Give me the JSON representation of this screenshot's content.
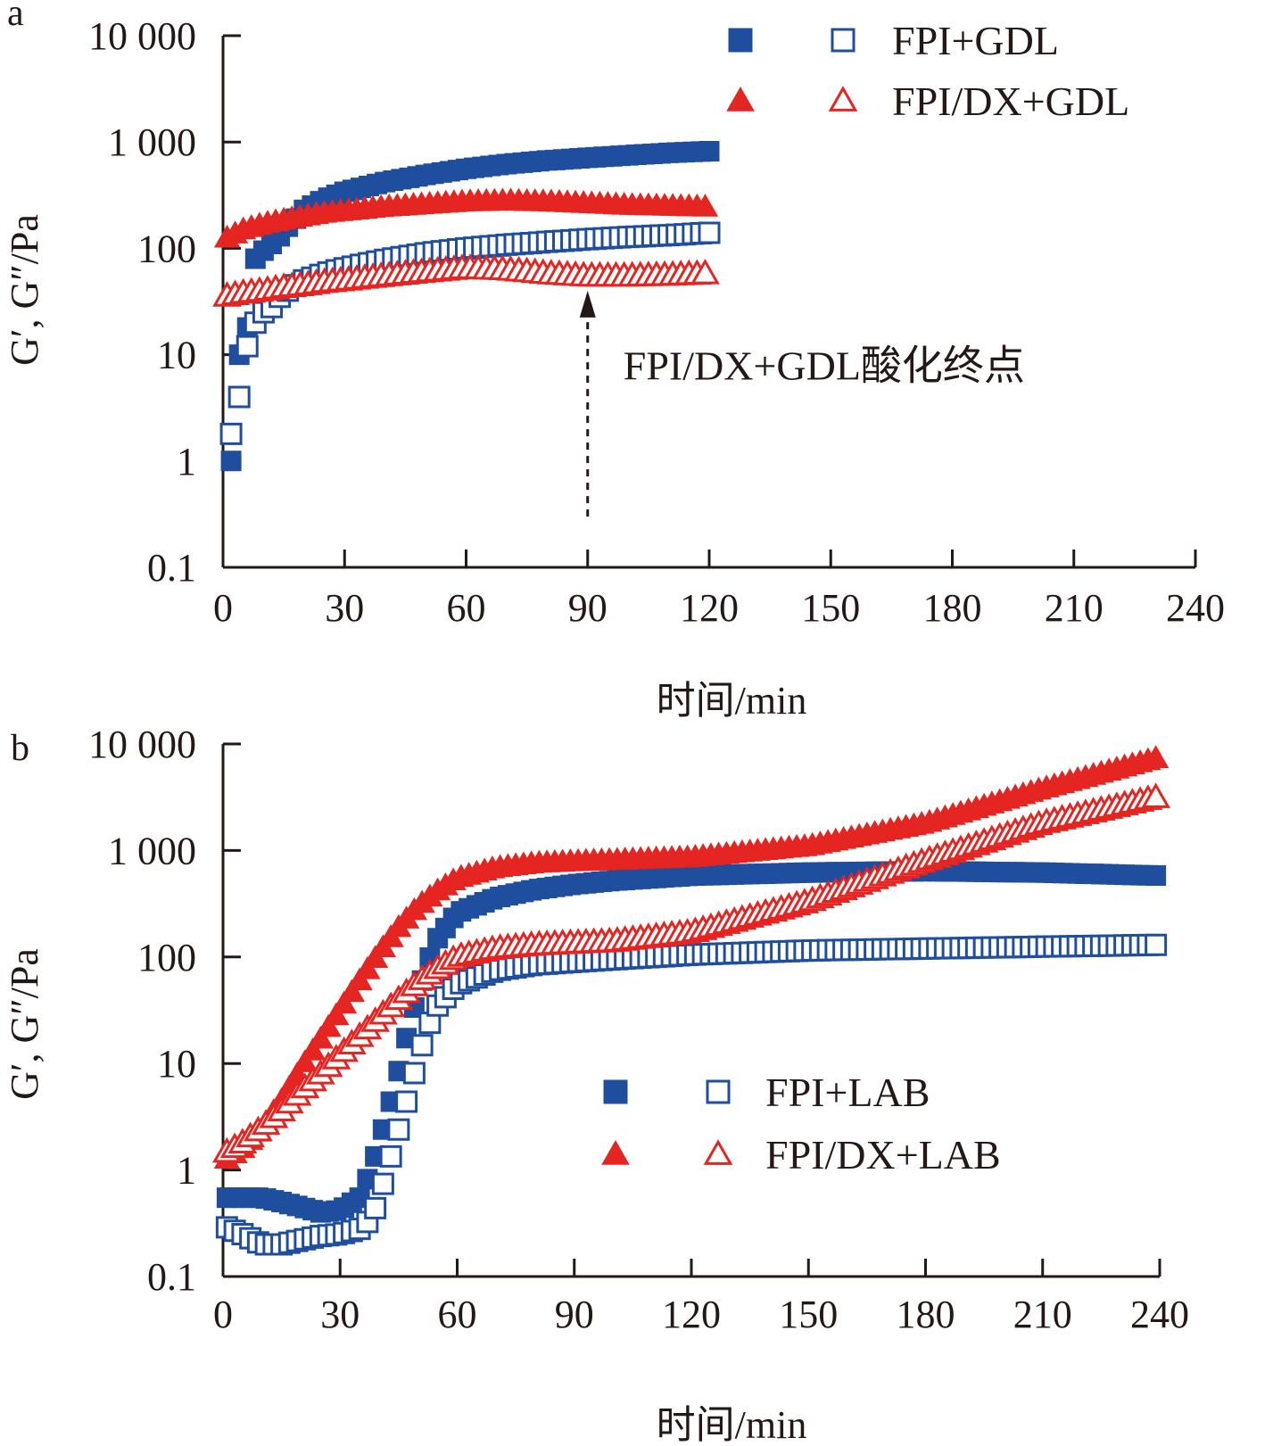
{
  "colors": {
    "blue": "#1f4e9e",
    "red": "#e52521",
    "ink": "#231815"
  },
  "chart_data": [
    {
      "panel": "a",
      "type": "scatter",
      "xlabel": "时间/min",
      "ylabel": "G′, G″/Pa",
      "xlim": [
        0,
        240
      ],
      "ylim": [
        0.1,
        10000
      ],
      "y_scale": "log",
      "xticks": [
        "0",
        "30",
        "60",
        "90",
        "120",
        "150",
        "180",
        "210",
        "240"
      ],
      "yticks": [
        "0.1",
        "1",
        "10",
        "100",
        "1 000",
        "10 000"
      ],
      "legend": [
        {
          "filled": "square-blue",
          "open": "square-blue",
          "label": "FPI+GDL"
        },
        {
          "filled": "triangle-red",
          "open": "triangle-red",
          "label": "FPI/DX+GDL"
        }
      ],
      "annotation": {
        "text": "FPI/DX+GDL酸化终点",
        "x": 90,
        "arrow_from_y": 0.3,
        "arrow_to_y": 40
      },
      "series": [
        {
          "sample": "FPI+GDL",
          "modulus": "G′",
          "marker": "square",
          "fill": "filled",
          "color": "blue",
          "x": [
            2,
            4,
            6,
            8,
            10,
            12,
            14,
            16,
            18,
            20,
            25,
            30,
            40,
            50,
            60,
            70,
            80,
            90,
            100,
            110,
            120
          ],
          "y": [
            1,
            10,
            18,
            80,
            95,
            110,
            130,
            160,
            190,
            230,
            290,
            340,
            420,
            490,
            560,
            620,
            670,
            710,
            750,
            790,
            820
          ]
        },
        {
          "sample": "FPI+GDL",
          "modulus": "G″",
          "marker": "square",
          "fill": "open",
          "color": "blue",
          "x": [
            2,
            4,
            6,
            8,
            10,
            12,
            14,
            16,
            18,
            20,
            25,
            30,
            40,
            50,
            60,
            70,
            80,
            90,
            100,
            110,
            120
          ],
          "y": [
            1.8,
            4,
            12,
            20,
            25,
            28,
            35,
            40,
            45,
            50,
            58,
            65,
            78,
            90,
            100,
            108,
            115,
            122,
            128,
            133,
            140
          ]
        },
        {
          "sample": "FPI/DX+GDL",
          "modulus": "G′",
          "marker": "triangle",
          "fill": "filled",
          "color": "red",
          "x": [
            0,
            5,
            10,
            15,
            20,
            25,
            30,
            40,
            50,
            60,
            70,
            80,
            90,
            100,
            110,
            120
          ],
          "y": [
            120,
            150,
            170,
            185,
            200,
            215,
            225,
            245,
            260,
            275,
            280,
            275,
            265,
            255,
            250,
            245
          ]
        },
        {
          "sample": "FPI/DX+GDL",
          "modulus": "G″",
          "marker": "triangle",
          "fill": "open",
          "color": "red",
          "x": [
            0,
            5,
            10,
            15,
            20,
            25,
            30,
            40,
            50,
            60,
            70,
            80,
            90,
            100,
            110,
            120
          ],
          "y": [
            35,
            38,
            40,
            43,
            45,
            48,
            50,
            55,
            60,
            65,
            63,
            58,
            55,
            55,
            56,
            58
          ]
        }
      ]
    },
    {
      "panel": "b",
      "type": "scatter",
      "xlabel": "时间/min",
      "ylabel": "G′, G″/Pa",
      "xlim": [
        0,
        240
      ],
      "ylim": [
        0.1,
        10000
      ],
      "y_scale": "log",
      "xticks": [
        "0",
        "30",
        "60",
        "90",
        "120",
        "150",
        "180",
        "210",
        "240"
      ],
      "yticks": [
        "0.1",
        "1",
        "10",
        "100",
        "1 000",
        "10 000"
      ],
      "legend": [
        {
          "filled": "square-blue",
          "open": "square-blue",
          "label": "FPI+LAB"
        },
        {
          "filled": "triangle-red",
          "open": "triangle-red",
          "label": "FPI/DX+LAB"
        }
      ],
      "series": [
        {
          "sample": "FPI+LAB",
          "modulus": "G′",
          "marker": "square",
          "fill": "filled",
          "color": "blue",
          "x": [
            0,
            5,
            10,
            15,
            20,
            25,
            30,
            35,
            38,
            40,
            42,
            44,
            46,
            48,
            50,
            52,
            55,
            60,
            70,
            80,
            90,
            100,
            120,
            150,
            180,
            210,
            240
          ],
          "y": [
            0.55,
            0.55,
            0.55,
            0.5,
            0.45,
            0.4,
            0.42,
            0.55,
            1.0,
            1.8,
            3.2,
            6,
            12,
            25,
            45,
            80,
            150,
            260,
            360,
            430,
            480,
            520,
            580,
            620,
            640,
            620,
            580
          ]
        },
        {
          "sample": "FPI+LAB",
          "modulus": "G″",
          "marker": "square",
          "fill": "open",
          "color": "blue",
          "x": [
            0,
            5,
            10,
            15,
            20,
            25,
            30,
            35,
            38,
            40,
            42,
            44,
            46,
            48,
            50,
            52,
            55,
            60,
            70,
            80,
            90,
            100,
            120,
            150,
            180,
            210,
            240
          ],
          "y": [
            0.3,
            0.25,
            0.2,
            0.2,
            0.22,
            0.24,
            0.25,
            0.28,
            0.35,
            0.55,
            1.0,
            1.8,
            3.2,
            6,
            11,
            20,
            35,
            55,
            75,
            85,
            90,
            95,
            105,
            115,
            120,
            125,
            130
          ]
        },
        {
          "sample": "FPI/DX+LAB",
          "modulus": "G′",
          "marker": "triangle",
          "fill": "filled",
          "color": "red",
          "x": [
            0,
            5,
            10,
            15,
            20,
            25,
            30,
            35,
            40,
            45,
            50,
            55,
            60,
            70,
            80,
            90,
            100,
            120,
            150,
            180,
            210,
            240
          ],
          "y": [
            1.2,
            1.6,
            2.5,
            4.5,
            9,
            17,
            32,
            60,
            110,
            190,
            300,
            420,
            550,
            690,
            760,
            790,
            810,
            860,
            1100,
            1800,
            3800,
            7500
          ]
        },
        {
          "sample": "FPI/DX+LAB",
          "modulus": "G″",
          "marker": "triangle",
          "fill": "open",
          "color": "red",
          "x": [
            0,
            5,
            10,
            15,
            20,
            25,
            30,
            35,
            40,
            45,
            50,
            55,
            60,
            70,
            80,
            90,
            100,
            120,
            150,
            180,
            210,
            240
          ],
          "y": [
            1.4,
            1.8,
            2.5,
            3.6,
            5.5,
            8,
            12,
            18,
            27,
            40,
            58,
            78,
            100,
            120,
            130,
            135,
            140,
            170,
            330,
            800,
            1800,
            3200
          ]
        }
      ]
    }
  ]
}
